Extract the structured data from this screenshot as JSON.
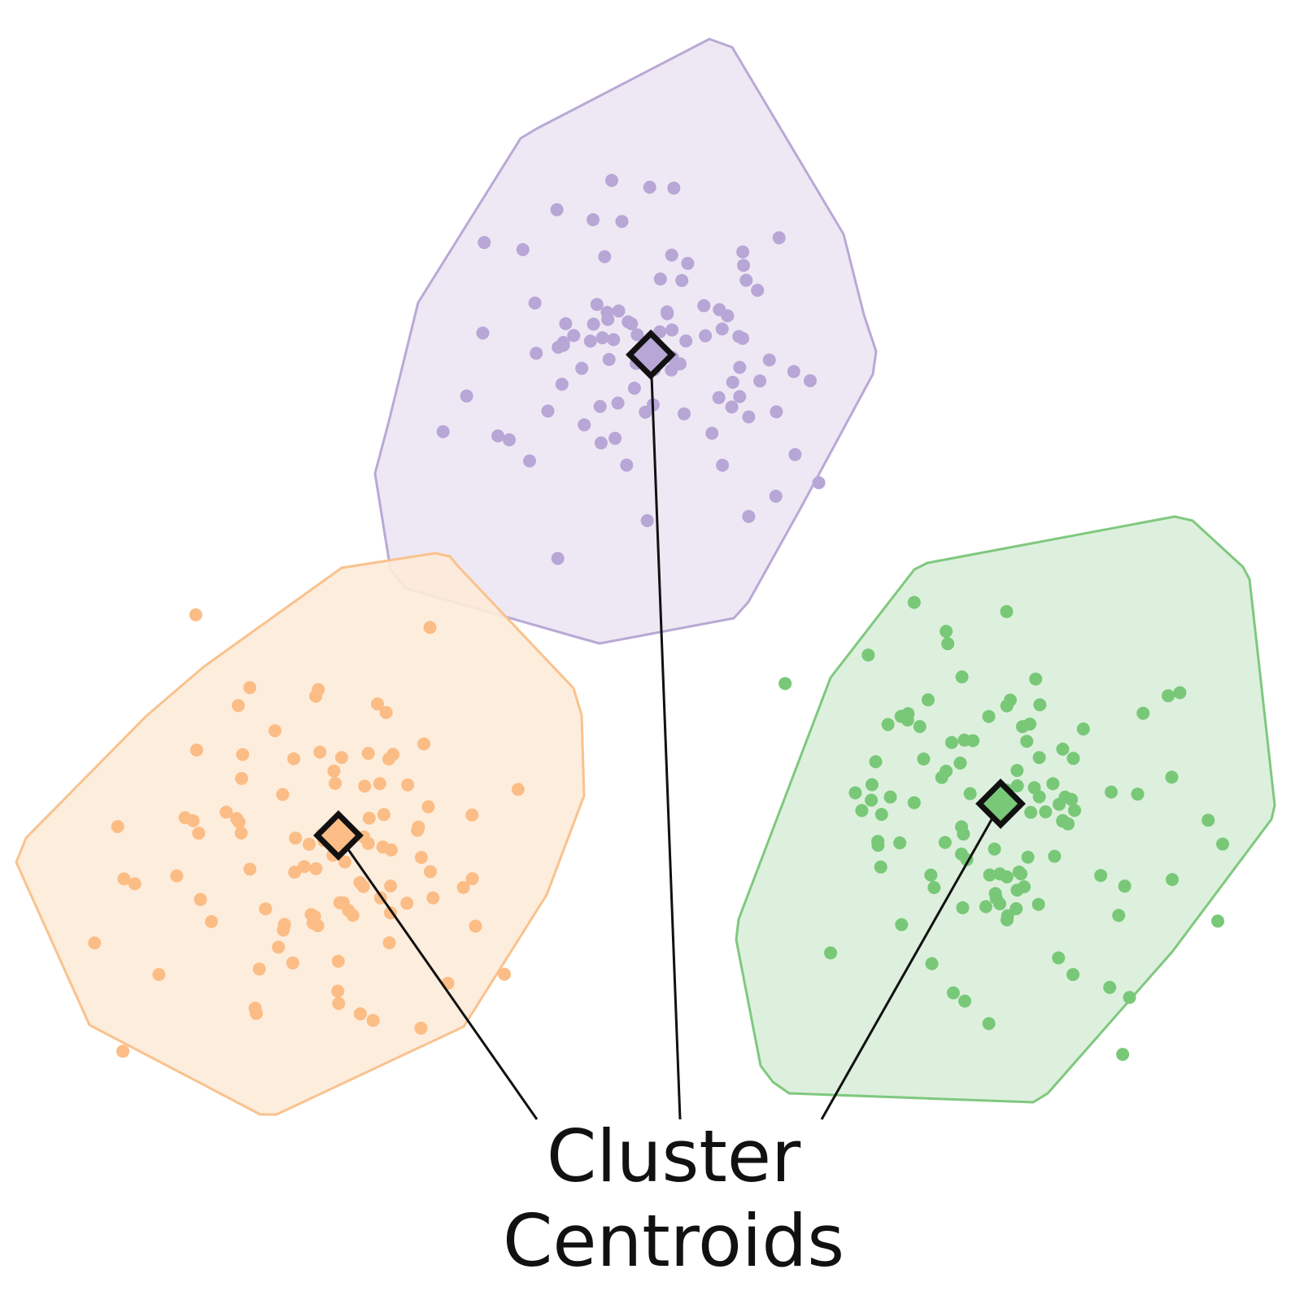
{
  "label": {
    "line1": "Cluster",
    "line2": "Centroids"
  },
  "colors": {
    "purple": {
      "fill": "#ece6f3",
      "stroke": "#b9a9d5",
      "point": "#b7a6d6"
    },
    "orange": {
      "fill": "#fdebd9",
      "stroke": "#f9c28d",
      "point": "#fbbd85"
    },
    "green": {
      "fill": "#d9eed9",
      "stroke": "#7fc87f",
      "point": "#78c878"
    },
    "outline": "#111111"
  },
  "clusters": [
    {
      "id": "purple",
      "marker": "diamond",
      "leader_line": true
    },
    {
      "id": "orange",
      "marker": "diamond",
      "leader_line": true
    },
    {
      "id": "green",
      "marker": "diamond",
      "leader_line": true
    }
  ]
}
